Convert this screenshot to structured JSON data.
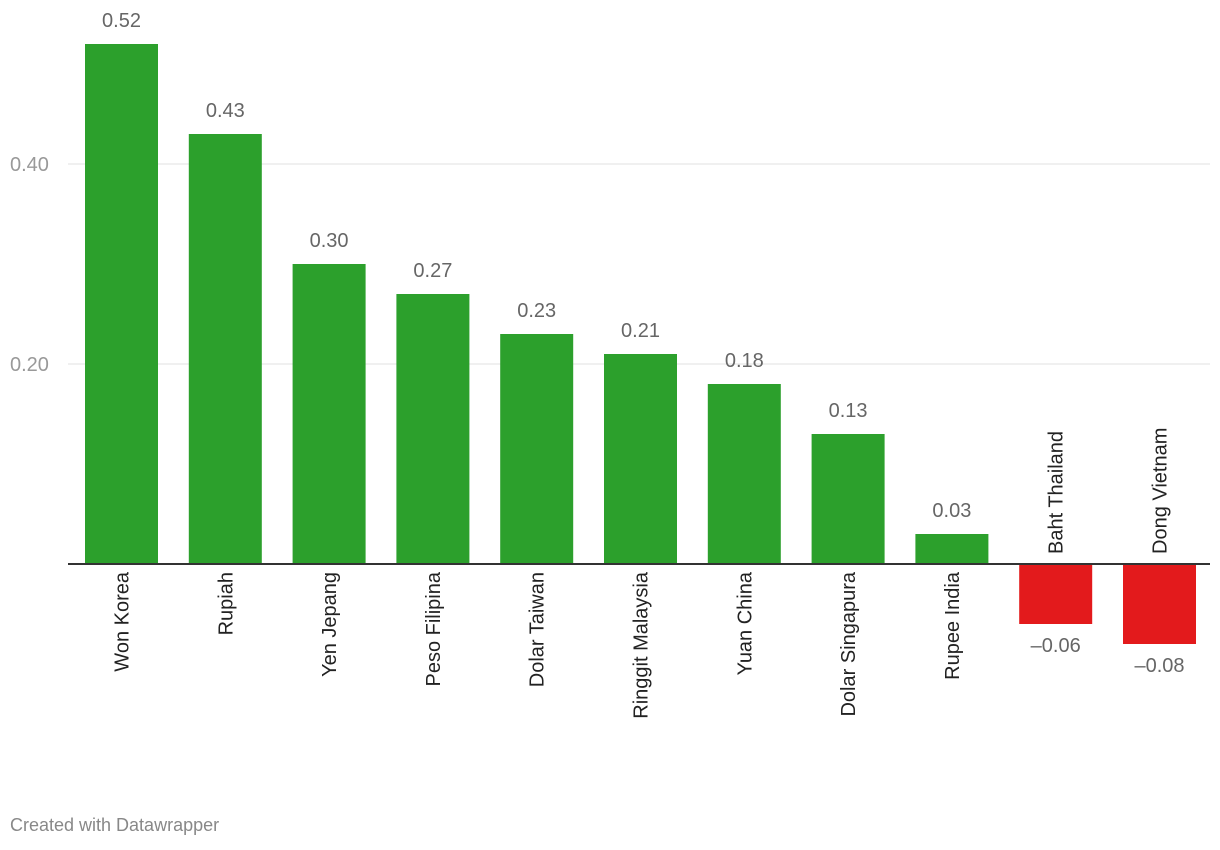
{
  "chart_data": {
    "type": "bar",
    "categories": [
      "Won Korea",
      "Rupiah",
      "Yen Jepang",
      "Peso Filipina",
      "Dolar Taiwan",
      "Ringgit Malaysia",
      "Yuan China",
      "Dolar Singapura",
      "Rupee India",
      "Baht Thailand",
      "Dong Vietnam"
    ],
    "values": [
      0.52,
      0.43,
      0.3,
      0.27,
      0.23,
      0.21,
      0.18,
      0.13,
      0.03,
      -0.06,
      -0.08
    ],
    "value_labels": [
      "0.52",
      "0.43",
      "0.30",
      "0.27",
      "0.23",
      "0.21",
      "0.18",
      "0.13",
      "0.03",
      "–0.06",
      "–0.08"
    ],
    "yticks": [
      0.2,
      0.4
    ],
    "ytick_labels": [
      "0.20",
      "0.40"
    ],
    "ylim": [
      -0.08,
      0.52
    ],
    "grid": true,
    "colors": {
      "positive": "#2ca02c",
      "negative": "#e31a1c",
      "grid": "#e0e0e0",
      "baseline": "#333333"
    }
  },
  "footer": {
    "credit": "Created with Datawrapper"
  }
}
